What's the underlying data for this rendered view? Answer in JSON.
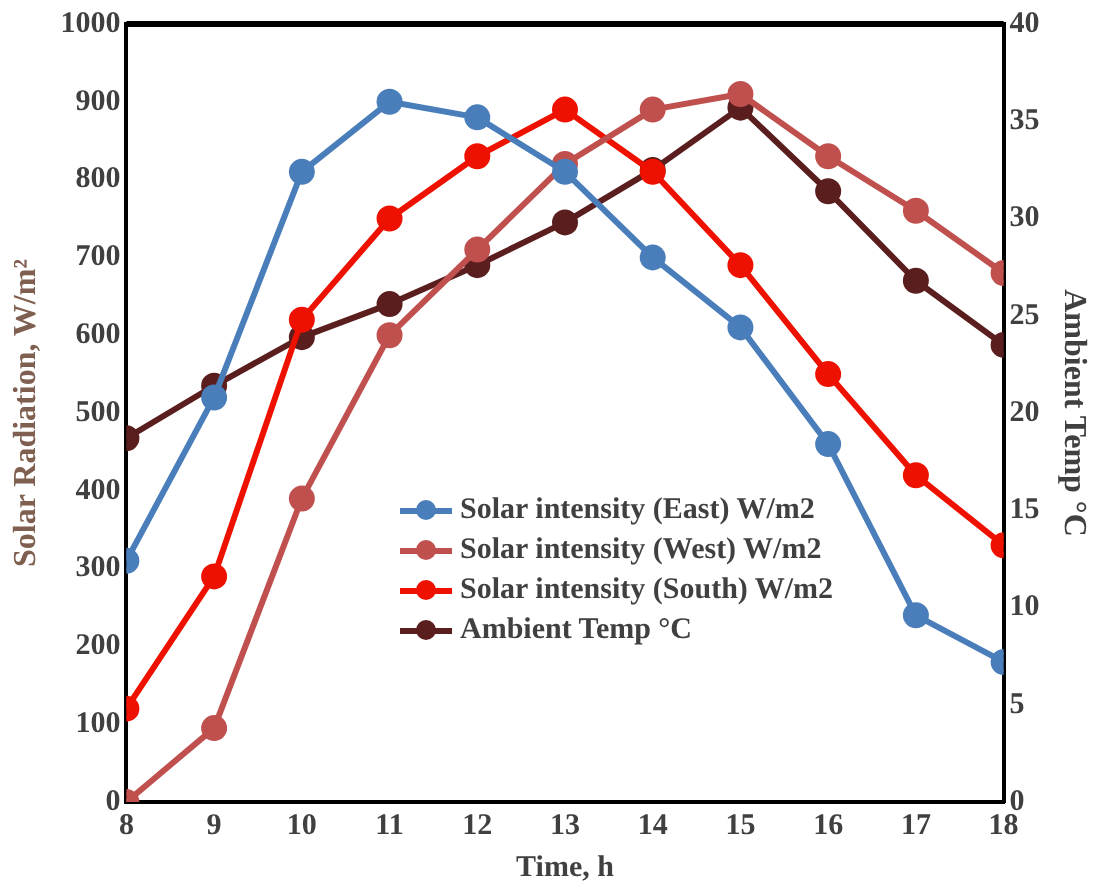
{
  "chart_data": {
    "type": "line",
    "xlabel": "Time, h",
    "ylabel": "Solar Radiation, W/m²",
    "y2label": "Ambient Temp °C",
    "x": [
      8,
      9,
      10,
      11,
      12,
      13,
      14,
      15,
      16,
      17,
      18
    ],
    "xlim": [
      8,
      18
    ],
    "xticks": [
      8,
      9,
      10,
      11,
      12,
      13,
      14,
      15,
      16,
      17,
      18
    ],
    "ylim": [
      0,
      1000
    ],
    "yticks": [
      0,
      100,
      200,
      300,
      400,
      500,
      600,
      700,
      800,
      900,
      1000
    ],
    "y2lim": [
      0,
      40
    ],
    "y2ticks": [
      0,
      5,
      10,
      15,
      20,
      25,
      30,
      35,
      40
    ],
    "grid": false,
    "legend": "bottom",
    "marker": "circle",
    "line_style": "solid",
    "series": [
      {
        "name": "Solar intensity (East) W/m2",
        "color": "#4a7ebb",
        "values": [
          310,
          520,
          810,
          900,
          880,
          810,
          700,
          610,
          460,
          240,
          180
        ]
      },
      {
        "name": "Solar intensity (West) W/m2",
        "color": "#c0504d",
        "values": [
          0,
          95,
          390,
          600,
          710,
          820,
          890,
          910,
          830,
          760,
          680
        ]
      },
      {
        "name": "Solar intensity (South) W/m2",
        "color": "#ee1100",
        "values": [
          120,
          290,
          620,
          750,
          830,
          890,
          810,
          690,
          550,
          420,
          330
        ]
      },
      {
        "name": "Ambient Temp °C",
        "color": "#5a1e1e",
        "axis": "y2",
        "values": [
          18.7,
          21.4,
          23.9,
          25.6,
          27.6,
          29.8,
          32.5,
          35.7,
          31.4,
          26.8,
          23.5
        ]
      }
    ]
  }
}
